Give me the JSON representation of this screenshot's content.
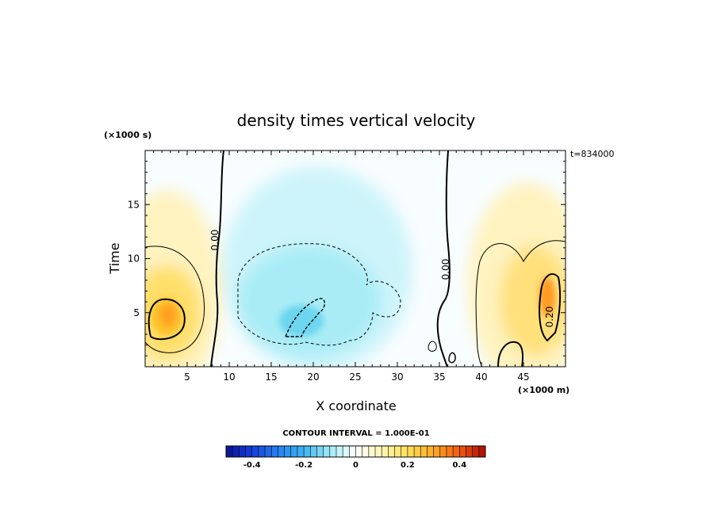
{
  "chart_data": {
    "type": "heatmap",
    "title": "density times vertical velocity",
    "xlabel": "X coordinate",
    "ylabel": "Time",
    "x_unit": "(×1000 m)",
    "y_unit": "(×1000 s)",
    "time_stamp": "t=834000",
    "x_ticks": [
      5,
      10,
      15,
      20,
      25,
      30,
      35,
      40,
      45
    ],
    "y_ticks": [
      5,
      10,
      15
    ],
    "x_tick_labels": [
      "5",
      "10",
      "15",
      "20",
      "25",
      "30",
      "35",
      "40",
      "45"
    ],
    "y_tick_labels": [
      "5",
      "10",
      "15"
    ],
    "xlim": [
      0,
      50
    ],
    "ylim": [
      0,
      20
    ],
    "contour_interval_label": "CONTOUR INTERVAL = 1.000E-01",
    "contour_labels": [
      "0.00",
      "0.00",
      "0.20"
    ],
    "colorbar": {
      "range": [
        -0.5,
        0.5
      ],
      "ticks": [
        -0.4,
        -0.2,
        0,
        0.2,
        0.4
      ],
      "tick_labels": [
        "-0.4",
        "-0.2",
        "0",
        "0.2",
        "0.4"
      ]
    }
  },
  "colors": {
    "negative_strong": "#0a1fa0",
    "negative_light": "#9eeaf6",
    "zero": "#ffffff",
    "positive_light": "#fff2b0",
    "positive_strong": "#b81000"
  }
}
